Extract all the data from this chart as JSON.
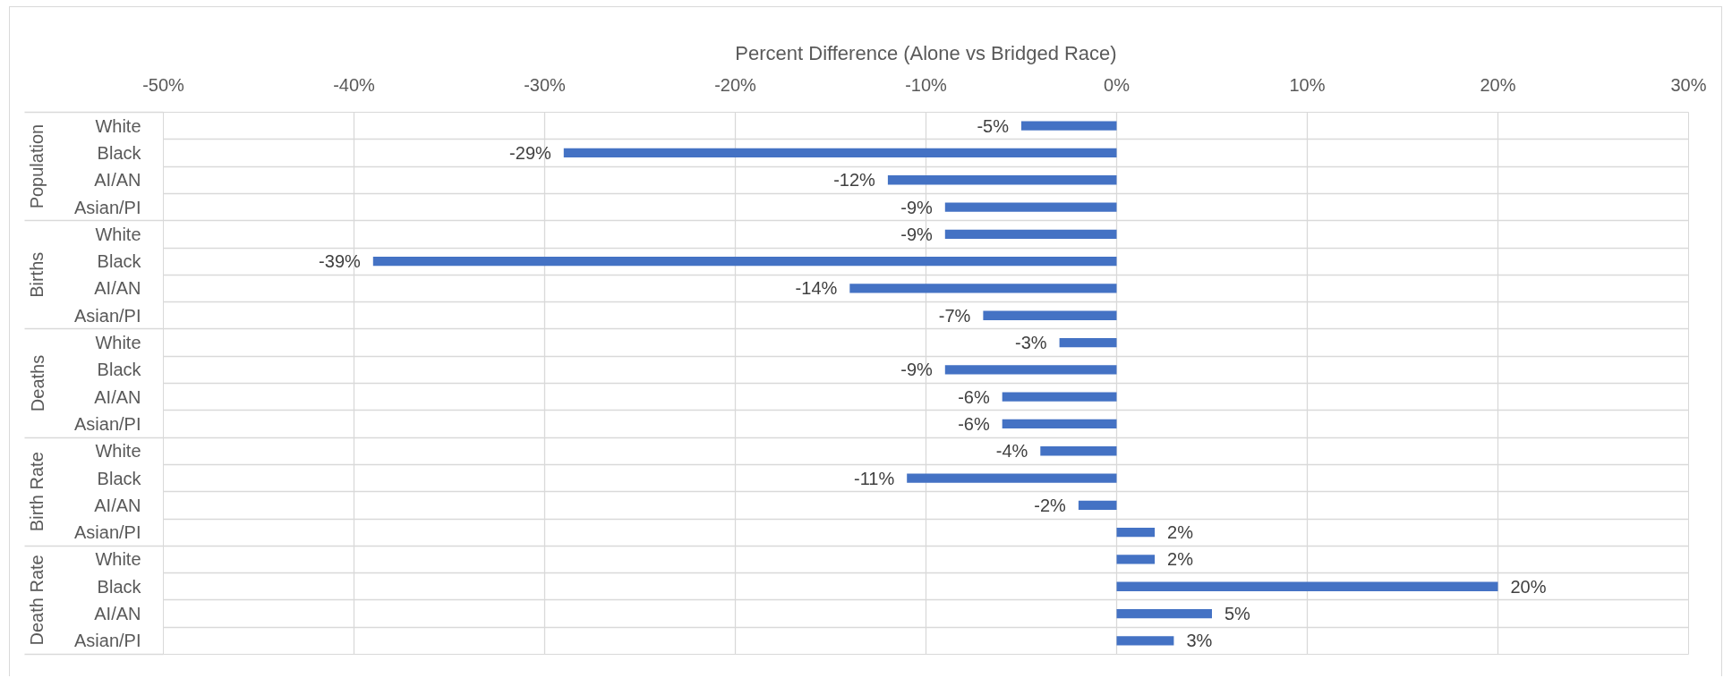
{
  "chart_data": {
    "type": "bar",
    "orientation": "horizontal",
    "xlabel": "Percent Difference (Alone vs Bridged Race)",
    "categories": [
      "White",
      "Black",
      "AI/AN",
      "Asian/PI",
      "White",
      "Black",
      "AI/AN",
      "Asian/PI",
      "White",
      "Black",
      "AI/AN",
      "Asian/PI",
      "White",
      "Black",
      "AI/AN",
      "Asian/PI",
      "White",
      "Black",
      "AI/AN",
      "Asian/PI"
    ],
    "annotations": [
      "Population",
      "Births",
      "Deaths",
      "Birth Rate",
      "Death Rate"
    ],
    "values": [
      -5,
      -29,
      -12,
      -9,
      -9,
      -39,
      -14,
      -7,
      -3,
      -9,
      -6,
      -6,
      -4,
      -11,
      -2,
      2,
      2,
      20,
      5,
      3
    ],
    "value_labels": [
      "-5%",
      "-29%",
      "-12%",
      "-9%",
      "-9%",
      "-39%",
      "-14%",
      "-7%",
      "-3%",
      "-9%",
      "-6%",
      "-6%",
      "-4%",
      "-11%",
      "-2%",
      "2%",
      "2%",
      "20%",
      "5%",
      "3%"
    ],
    "color": "#4472c4",
    "xlim": [
      -50,
      30
    ],
    "xticks": [
      {
        "value": -50,
        "label": "-50%"
      },
      {
        "value": -40,
        "label": "-40%"
      },
      {
        "value": -30,
        "label": "-30%"
      },
      {
        "value": -20,
        "label": "-20%"
      },
      {
        "value": -10,
        "label": "-10%"
      },
      {
        "value": 0,
        "label": "0%"
      },
      {
        "value": 10,
        "label": "10%"
      },
      {
        "value": 20,
        "label": "20%"
      },
      {
        "value": 30,
        "label": "30%"
      }
    ],
    "grid": true
  }
}
